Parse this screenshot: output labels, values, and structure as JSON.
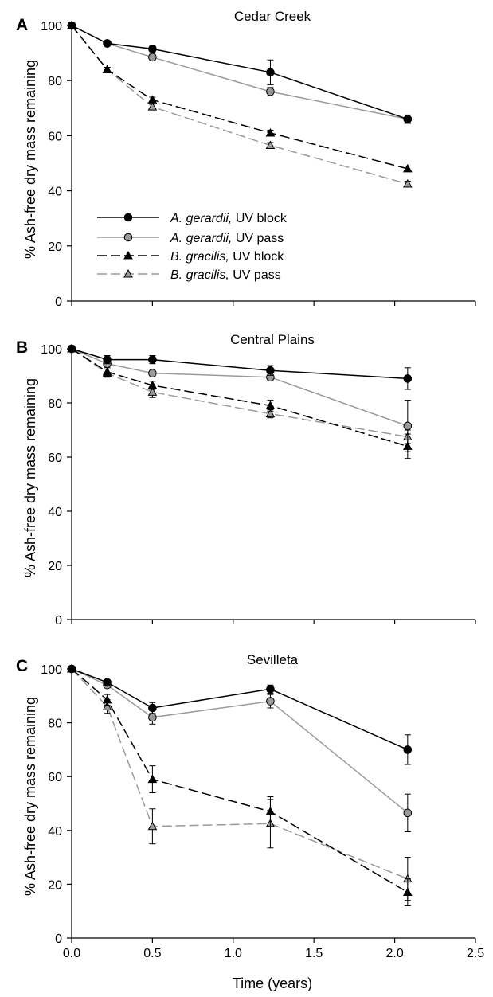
{
  "figure": {
    "y_axis_label": "% Ash-free dry mass remaining",
    "x_axis_label": "Time (years)"
  },
  "legend": [
    {
      "species": "A. gerardii,",
      "treatment": " UV block"
    },
    {
      "species": "A. gerardii,",
      "treatment": " UV pass"
    },
    {
      "species": "B. gracilis,",
      "treatment": " UV block"
    },
    {
      "species": "B. gracilis,",
      "treatment": " UV pass"
    }
  ],
  "colors": {
    "uv_block": "#000000",
    "uv_pass_line": "#9a9a9a",
    "uv_pass_fill": "#9a9a9a"
  },
  "chart_data": [
    {
      "type": "line",
      "panel": "A",
      "title": "Cedar Creek",
      "ylabel": "% Ash-free dry mass remaining",
      "xlabel": "",
      "xlim": [
        0,
        2.5
      ],
      "ylim": [
        0,
        100
      ],
      "yticks": [
        0,
        20,
        40,
        60,
        80,
        100
      ],
      "xticks": [
        0.0,
        0.5,
        1.0,
        1.5,
        2.0,
        2.5
      ],
      "legend_position": "lower-left",
      "series": [
        {
          "name": "A. gerardii, UV block",
          "x": [
            0,
            0.22,
            0.5,
            1.23,
            2.08
          ],
          "y": [
            100,
            93.5,
            91.5,
            83,
            66
          ],
          "err": [
            0,
            0.8,
            1,
            4.5,
            1.5
          ]
        },
        {
          "name": "A. gerardii, UV pass",
          "x": [
            0,
            0.22,
            0.5,
            1.23,
            2.08
          ],
          "y": [
            100,
            93.5,
            88.5,
            76,
            66
          ],
          "err": [
            0,
            0.8,
            1,
            1.5,
            1.5
          ]
        },
        {
          "name": "B. gracilis, UV block",
          "x": [
            0,
            0.22,
            0.5,
            1.23,
            2.08
          ],
          "y": [
            100,
            84,
            73,
            61,
            48
          ],
          "err": [
            0,
            0.8,
            1,
            1,
            1
          ]
        },
        {
          "name": "B. gracilis, UV pass",
          "x": [
            0,
            0.22,
            0.5,
            1.23,
            2.08
          ],
          "y": [
            100,
            84,
            70.5,
            56.5,
            42.5
          ],
          "err": [
            0,
            0.8,
            1,
            1,
            1
          ]
        }
      ]
    },
    {
      "type": "line",
      "panel": "B",
      "title": "Central Plains",
      "ylabel": "% Ash-free dry mass remaining",
      "xlabel": "",
      "xlim": [
        0,
        2.5
      ],
      "ylim": [
        0,
        100
      ],
      "yticks": [
        0,
        20,
        40,
        60,
        80,
        100
      ],
      "xticks": [
        0.0,
        0.5,
        1.0,
        1.5,
        2.0,
        2.5
      ],
      "series": [
        {
          "name": "A. gerardii, UV block",
          "x": [
            0,
            0.22,
            0.5,
            1.23,
            2.08
          ],
          "y": [
            100,
            96,
            96,
            92,
            89
          ],
          "err": [
            0,
            1.5,
            1.5,
            1.8,
            4
          ]
        },
        {
          "name": "A. gerardii, UV pass",
          "x": [
            0,
            0.22,
            0.5,
            1.23,
            2.08
          ],
          "y": [
            100,
            94.5,
            91,
            89.5,
            71.5
          ],
          "err": [
            0,
            1,
            1,
            1,
            9.5
          ]
        },
        {
          "name": "B. gracilis, UV block",
          "x": [
            0,
            0.22,
            0.5,
            1.23,
            2.08
          ],
          "y": [
            100,
            91.5,
            86.5,
            79,
            64
          ],
          "err": [
            0,
            1.5,
            1.5,
            2,
            4.5
          ]
        },
        {
          "name": "B. gracilis, UV pass",
          "x": [
            0,
            0.22,
            0.5,
            1.23,
            2.08
          ],
          "y": [
            100,
            91,
            84,
            76,
            67.5
          ],
          "err": [
            0,
            1.5,
            2,
            1.5,
            2.5
          ]
        }
      ]
    },
    {
      "type": "line",
      "panel": "C",
      "title": "Sevilleta",
      "ylabel": "% Ash-free dry mass remaining",
      "xlabel": "Time (years)",
      "xlim": [
        0,
        2.5
      ],
      "ylim": [
        0,
        100
      ],
      "yticks": [
        0,
        20,
        40,
        60,
        80,
        100
      ],
      "xticks": [
        0.0,
        0.5,
        1.0,
        1.5,
        2.0,
        2.5
      ],
      "xtick_labels": [
        "0.0",
        "0.5",
        "1.0",
        "1.5",
        "2.0",
        "2.5"
      ],
      "series": [
        {
          "name": "A. gerardii, UV block",
          "x": [
            0,
            0.22,
            0.5,
            1.23,
            2.08
          ],
          "y": [
            100,
            95,
            85.5,
            92.5,
            70
          ],
          "err": [
            0,
            1,
            2,
            1.5,
            5.5
          ]
        },
        {
          "name": "A. gerardii, UV pass",
          "x": [
            0,
            0.22,
            0.5,
            1.23,
            2.08
          ],
          "y": [
            100,
            94,
            82,
            88,
            46.5
          ],
          "err": [
            0,
            1,
            2.5,
            2.5,
            7
          ]
        },
        {
          "name": "B. gracilis, UV block",
          "x": [
            0,
            0.22,
            0.5,
            1.23,
            2.08
          ],
          "y": [
            100,
            88.5,
            59,
            47,
            17
          ],
          "err": [
            0,
            2,
            5,
            5.5,
            5
          ]
        },
        {
          "name": "B. gracilis, UV pass",
          "x": [
            0,
            0.22,
            0.5,
            1.23,
            2.08
          ],
          "y": [
            100,
            86,
            41.5,
            42.5,
            22
          ],
          "err": [
            0,
            2.5,
            6.5,
            9,
            8
          ]
        }
      ]
    }
  ]
}
